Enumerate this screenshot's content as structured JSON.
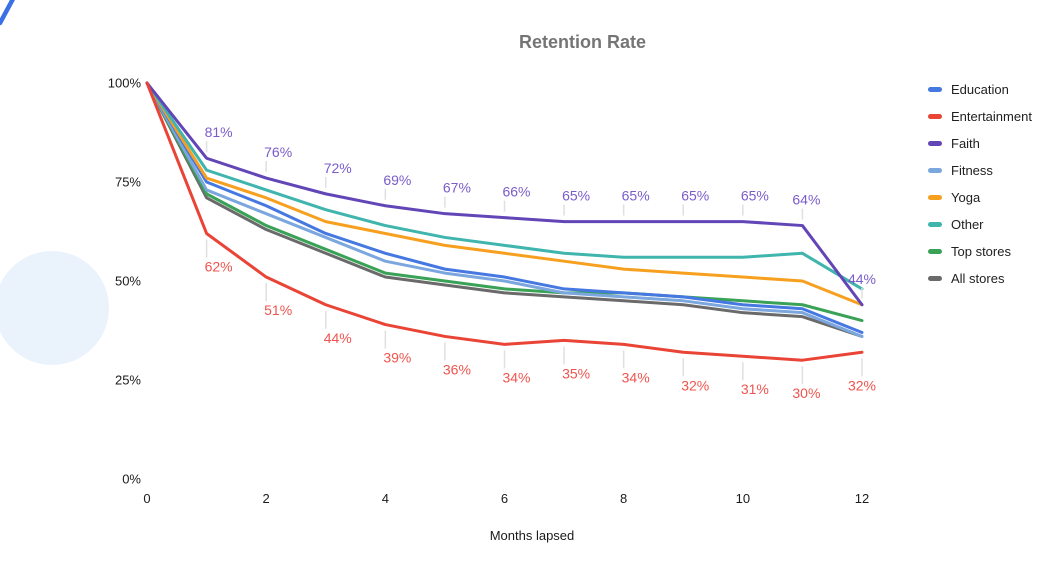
{
  "decorations": {
    "corner_stroke_color": "#3a6fe6",
    "circle_color": "#eaf2fc"
  },
  "axis": {
    "y_ticks": [
      "100%",
      "75%",
      "50%",
      "25%",
      "0%"
    ],
    "x_ticks": [
      "0",
      "2",
      "4",
      "6",
      "8",
      "10",
      "12"
    ],
    "tick_color": "#1b1b1b"
  },
  "chart_data": {
    "type": "line",
    "title": "Retention Rate",
    "xlabel": "Months lapsed",
    "ylabel": "",
    "xlim": [
      0,
      12
    ],
    "ylim": [
      0,
      100
    ],
    "grid": false,
    "legend_position": "right",
    "x": [
      0,
      1,
      2,
      3,
      4,
      5,
      6,
      7,
      8,
      9,
      10,
      11,
      12
    ],
    "series": [
      {
        "name": "Education",
        "color": "#4678e2",
        "values": [
          100,
          75,
          69,
          62,
          57,
          53,
          51,
          48,
          47,
          46,
          44,
          43,
          37
        ]
      },
      {
        "name": "Entertainment",
        "color": "#e94435",
        "label_color": "#ef544e",
        "values": [
          100,
          62,
          51,
          44,
          39,
          36,
          34,
          35,
          34,
          32,
          31,
          30,
          32
        ],
        "point_labels": [
          "",
          "62%",
          "51%",
          "44%",
          "39%",
          "36%",
          "34%",
          "35%",
          "34%",
          "32%",
          "31%",
          "30%",
          "32%"
        ],
        "label_side": "below"
      },
      {
        "name": "Faith",
        "color": "#6246b8",
        "label_color": "#7a5ccb",
        "values": [
          100,
          81,
          76,
          72,
          69,
          67,
          66,
          65,
          65,
          65,
          65,
          64,
          44
        ],
        "point_labels": [
          "",
          "81%",
          "76%",
          "72%",
          "69%",
          "67%",
          "66%",
          "65%",
          "65%",
          "65%",
          "65%",
          "64%",
          "44%"
        ],
        "label_side": "above"
      },
      {
        "name": "Fitness",
        "color": "#7ba7de",
        "values": [
          100,
          73,
          67,
          61,
          55,
          52,
          50,
          47,
          46,
          45,
          43,
          42,
          36
        ]
      },
      {
        "name": "Yoga",
        "color": "#f7a01f",
        "values": [
          100,
          76,
          71,
          65,
          62,
          59,
          57,
          55,
          53,
          52,
          51,
          50,
          44
        ]
      },
      {
        "name": "Other",
        "color": "#3fb5ad",
        "values": [
          100,
          78,
          73,
          68,
          64,
          61,
          59,
          57,
          56,
          56,
          56,
          57,
          48
        ]
      },
      {
        "name": "Top stores",
        "color": "#3aa257",
        "values": [
          100,
          72,
          64,
          58,
          52,
          50,
          48,
          47,
          47,
          46,
          45,
          44,
          40
        ]
      },
      {
        "name": "All stores",
        "color": "#6a6a6a",
        "values": [
          100,
          71,
          63,
          57,
          51,
          49,
          47,
          46,
          45,
          44,
          42,
          41,
          36
        ]
      }
    ]
  }
}
